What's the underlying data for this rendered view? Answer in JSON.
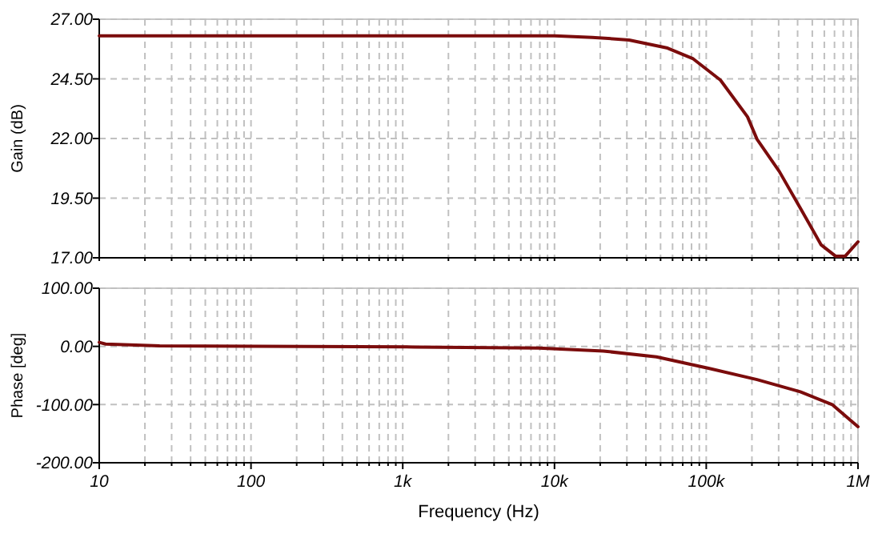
{
  "chart_data": [
    {
      "type": "line",
      "ylabel": "Gain (dB)",
      "log": "x",
      "grid": true,
      "tick_labels": "y",
      "marker": "none",
      "line_style": "solid",
      "xlim": [
        10,
        1000000
      ],
      "xticks": [
        {
          "value": 10,
          "label": null
        },
        {
          "value": 20,
          "label": null
        },
        {
          "value": 30,
          "label": null
        },
        {
          "value": 40,
          "label": null
        },
        {
          "value": 50,
          "label": null
        },
        {
          "value": 60,
          "label": null
        },
        {
          "value": 70,
          "label": null
        },
        {
          "value": 80,
          "label": null
        },
        {
          "value": 90,
          "label": null
        },
        {
          "value": 100,
          "label": null
        },
        {
          "value": 200,
          "label": null
        },
        {
          "value": 300,
          "label": null
        },
        {
          "value": 400,
          "label": null
        },
        {
          "value": 500,
          "label": null
        },
        {
          "value": 600,
          "label": null
        },
        {
          "value": 700,
          "label": null
        },
        {
          "value": 800,
          "label": null
        },
        {
          "value": 900,
          "label": null
        },
        {
          "value": 1000,
          "label": null
        },
        {
          "value": 2000,
          "label": null
        },
        {
          "value": 3000,
          "label": null
        },
        {
          "value": 4000,
          "label": null
        },
        {
          "value": 5000,
          "label": null
        },
        {
          "value": 6000,
          "label": null
        },
        {
          "value": 7000,
          "label": null
        },
        {
          "value": 8000,
          "label": null
        },
        {
          "value": 9000,
          "label": null
        },
        {
          "value": 10000,
          "label": null
        },
        {
          "value": 20000,
          "label": null
        },
        {
          "value": 30000,
          "label": null
        },
        {
          "value": 40000,
          "label": null
        },
        {
          "value": 50000,
          "label": null
        },
        {
          "value": 60000,
          "label": null
        },
        {
          "value": 70000,
          "label": null
        },
        {
          "value": 80000,
          "label": null
        },
        {
          "value": 90000,
          "label": null
        },
        {
          "value": 100000,
          "label": null
        },
        {
          "value": 200000,
          "label": null
        },
        {
          "value": 300000,
          "label": null
        },
        {
          "value": 400000,
          "label": null
        },
        {
          "value": 500000,
          "label": null
        },
        {
          "value": 600000,
          "label": null
        },
        {
          "value": 700000,
          "label": null
        },
        {
          "value": 800000,
          "label": null
        },
        {
          "value": 900000,
          "label": null
        },
        {
          "value": 1000000,
          "label": null
        }
      ],
      "ylim": [
        17,
        27
      ],
      "yticks": [
        {
          "value": 17,
          "label": "17.00"
        },
        {
          "value": 19.5,
          "label": "19.50"
        },
        {
          "value": 22,
          "label": "22.00"
        },
        {
          "value": 24.5,
          "label": "24.50"
        },
        {
          "value": 27,
          "label": "27.00"
        }
      ],
      "series": [
        {
          "color": "#7b0c0c",
          "x": [
            10,
            100,
            1000,
            10000,
            17700,
            31000,
            55600,
            82000,
            124000,
            187000,
            216000,
            303000,
            417000,
            572000,
            711000,
            824000,
            1000000
          ],
          "values": [
            26.3,
            26.3,
            26.3,
            26.3,
            26.24,
            26.13,
            25.79,
            25.34,
            24.45,
            22.91,
            21.97,
            20.62,
            19.08,
            17.54,
            17.07,
            17.07,
            17.67
          ]
        }
      ]
    },
    {
      "type": "line",
      "xlabel": "Frequency (Hz)",
      "ylabel": "Phase [deg]",
      "log": "x",
      "grid": true,
      "marker": "none",
      "line_style": "solid",
      "xlim": [
        10,
        1000000
      ],
      "xticks": [
        10,
        {
          "value": 20,
          "label": null
        },
        {
          "value": 30,
          "label": null
        },
        {
          "value": 40,
          "label": null
        },
        {
          "value": 50,
          "label": null
        },
        {
          "value": 60,
          "label": null
        },
        {
          "value": 70,
          "label": null
        },
        {
          "value": 80,
          "label": null
        },
        {
          "value": 90,
          "label": null
        },
        100,
        {
          "value": 200,
          "label": null
        },
        {
          "value": 300,
          "label": null
        },
        {
          "value": 400,
          "label": null
        },
        {
          "value": 500,
          "label": null
        },
        {
          "value": 600,
          "label": null
        },
        {
          "value": 700,
          "label": null
        },
        {
          "value": 800,
          "label": null
        },
        {
          "value": 900,
          "label": null
        },
        {
          "value": 1000,
          "label": "1k"
        },
        {
          "value": 2000,
          "label": null
        },
        {
          "value": 3000,
          "label": null
        },
        {
          "value": 4000,
          "label": null
        },
        {
          "value": 5000,
          "label": null
        },
        {
          "value": 6000,
          "label": null
        },
        {
          "value": 7000,
          "label": null
        },
        {
          "value": 8000,
          "label": null
        },
        {
          "value": 9000,
          "label": null
        },
        {
          "value": 10000,
          "label": "10k"
        },
        {
          "value": 20000,
          "label": null
        },
        {
          "value": 30000,
          "label": null
        },
        {
          "value": 40000,
          "label": null
        },
        {
          "value": 50000,
          "label": null
        },
        {
          "value": 60000,
          "label": null
        },
        {
          "value": 70000,
          "label": null
        },
        {
          "value": 80000,
          "label": null
        },
        {
          "value": 90000,
          "label": null
        },
        {
          "value": 100000,
          "label": "100k"
        },
        {
          "value": 200000,
          "label": null
        },
        {
          "value": 300000,
          "label": null
        },
        {
          "value": 400000,
          "label": null
        },
        {
          "value": 500000,
          "label": null
        },
        {
          "value": 600000,
          "label": null
        },
        {
          "value": 700000,
          "label": null
        },
        {
          "value": 800000,
          "label": null
        },
        {
          "value": 900000,
          "label": null
        },
        {
          "value": 1000000,
          "label": "1M"
        }
      ],
      "ylim": [
        -200,
        100
      ],
      "yticks": [
        {
          "value": -200,
          "label": "-200.00"
        },
        {
          "value": -100,
          "label": "-100.00"
        },
        {
          "value": 0,
          "label": "0.00"
        },
        {
          "value": 100,
          "label": "100.00"
        }
      ],
      "series": [
        {
          "color": "#7b0c0c",
          "x": [
            10,
            11,
            25,
            1200,
            7900,
            21000,
            47000,
            105000,
            216000,
            417000,
            676000,
            1000000
          ],
          "values": [
            7,
            4,
            1,
            -1,
            -3,
            -8,
            -18,
            -38,
            -57,
            -78,
            -100,
            -138
          ]
        }
      ]
    }
  ]
}
